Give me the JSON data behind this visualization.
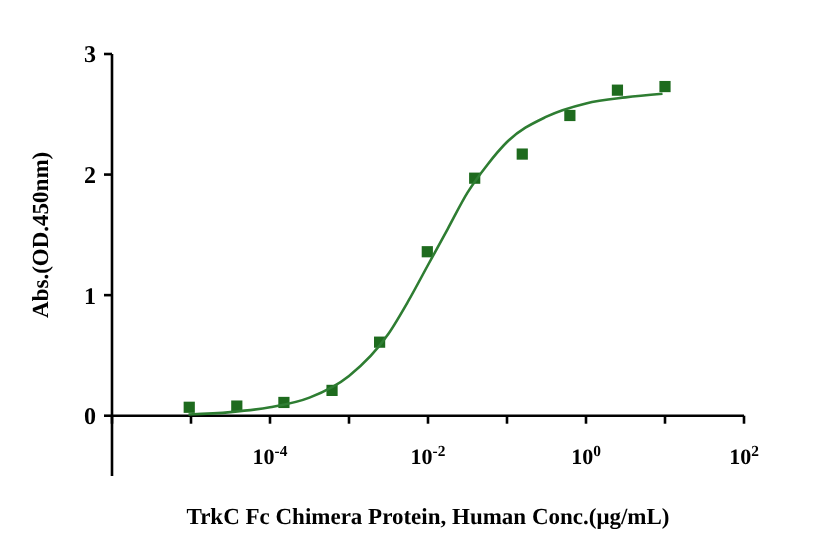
{
  "chart_data": {
    "type": "scatter",
    "xlabel": "TrkC Fc Chimera Protein, Human Conc.(μg/mL)",
    "ylabel": "Abs.(OD.450nm)",
    "log": "x",
    "grid": false,
    "xlim": [
      1e-06,
      100
    ],
    "xticks": [
      {
        "value": 1e-06,
        "label": null
      },
      {
        "value": 1e-05,
        "label": null
      },
      {
        "value": 0.0001,
        "label": "10$^{-4}$"
      },
      {
        "value": 0.001,
        "label": null
      },
      {
        "value": 0.01,
        "label": "10$^{-2}$"
      },
      {
        "value": 0.1,
        "label": null
      },
      {
        "value": 1,
        "label": "10$^{0}$"
      },
      {
        "value": 10,
        "label": null
      },
      {
        "value": 100,
        "label": "10$^{2}$"
      }
    ],
    "ylim": [
      -0.5,
      3
    ],
    "yticks": [
      0,
      1,
      2,
      3
    ],
    "series": [
      {
        "color": "#1e6b1e",
        "marker": "square",
        "x": [
          9.5e-06,
          3.8e-05,
          0.00015,
          0.00061,
          0.00244,
          0.0098,
          0.039,
          0.156,
          0.625,
          2.5,
          10
        ],
        "values": [
          0.07,
          0.08,
          0.11,
          0.21,
          0.61,
          1.36,
          1.97,
          2.17,
          2.49,
          2.7,
          2.73
        ]
      },
      {
        "type": "line",
        "color": "#2e7d32",
        "marker": "none",
        "x": [
          9.3e-06,
          3.16e-05,
          0.0001,
          0.000316,
          0.001,
          0.00316,
          0.00562,
          0.01,
          0.0178,
          0.0316,
          0.0562,
          0.1,
          0.316,
          1,
          3.16,
          9.3
        ],
        "values": [
          0.01,
          0.03,
          0.07,
          0.15,
          0.33,
          0.68,
          0.95,
          1.25,
          1.55,
          1.85,
          2.08,
          2.27,
          2.48,
          2.59,
          2.64,
          2.67
        ]
      }
    ]
  }
}
